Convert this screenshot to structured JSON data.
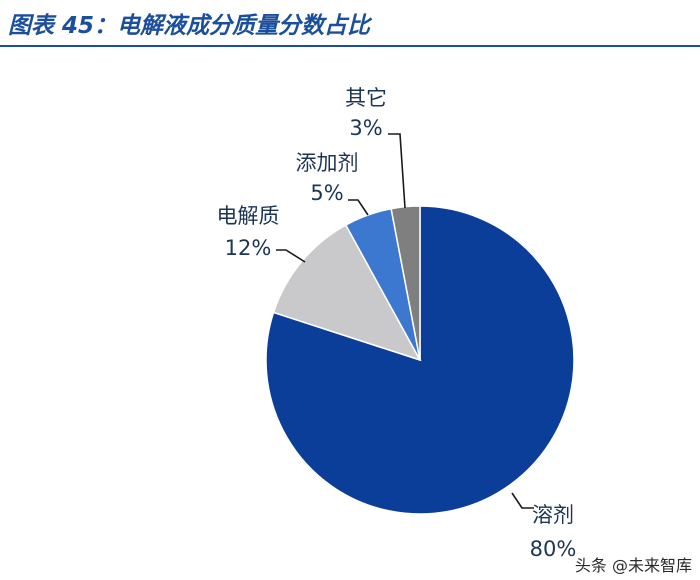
{
  "header": {
    "title": "图表 45：电解液成分质量分数占比",
    "accent_color": "#1b4f9c"
  },
  "chart_data": {
    "type": "pie",
    "title": "",
    "slices": [
      {
        "label": "溶剂",
        "value": 80,
        "value_label": "80%",
        "color": "#0b3e99"
      },
      {
        "label": "电解质",
        "value": 12,
        "value_label": "12%",
        "color": "#c9c9cb"
      },
      {
        "label": "添加剂",
        "value": 5,
        "value_label": "5%",
        "color": "#3c78d0"
      },
      {
        "label": "其它",
        "value": 3,
        "value_label": "3%",
        "color": "#7f7f7f"
      }
    ],
    "start": "12 o'clock",
    "direction": "clockwise",
    "labels": "outside with leader lines"
  },
  "watermark": {
    "text": "头条 @未来智库"
  }
}
